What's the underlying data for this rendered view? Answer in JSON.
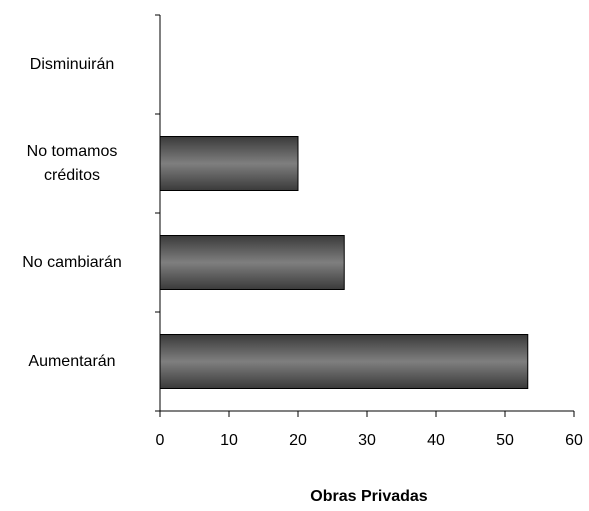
{
  "chart_data": {
    "type": "bar",
    "orientation": "horizontal",
    "x_label": "Obras Privadas",
    "categories": [
      "Disminuirán",
      "No tomamos créditos",
      "No cambiarán",
      "Aumentarán"
    ],
    "values": [
      0,
      20,
      26.7,
      53.3
    ],
    "color": "#7f7f7f",
    "xlim": [
      0,
      60
    ],
    "xticks": [
      0,
      10,
      20,
      30,
      40,
      50,
      60
    ]
  }
}
